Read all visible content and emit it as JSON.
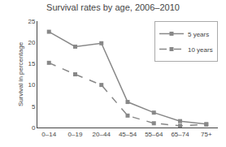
{
  "chart_data": {
    "type": "line",
    "title": "Survival rates by age, 2006–2010",
    "ylabel": "Survival in percentage",
    "categories": [
      "0–14",
      "0–19",
      "20–44",
      "45–54",
      "55–64",
      "65–74",
      "75+"
    ],
    "series": [
      {
        "name": "5 years",
        "color": "#888888",
        "marker": "square",
        "line_style": "solid",
        "values": [
          22.5,
          19.0,
          19.8,
          6.0,
          3.5,
          1.5,
          0.8
        ]
      },
      {
        "name": "10 years",
        "color": "#888888",
        "marker": "square",
        "line_style": "dashed",
        "values": [
          15.2,
          12.5,
          10.0,
          2.8,
          1.0,
          0.4,
          0.7
        ]
      }
    ],
    "ylim": [
      0,
      25
    ],
    "yticks": [
      0,
      5,
      10,
      15,
      20,
      25
    ],
    "grid": false,
    "legend": "upper right"
  }
}
